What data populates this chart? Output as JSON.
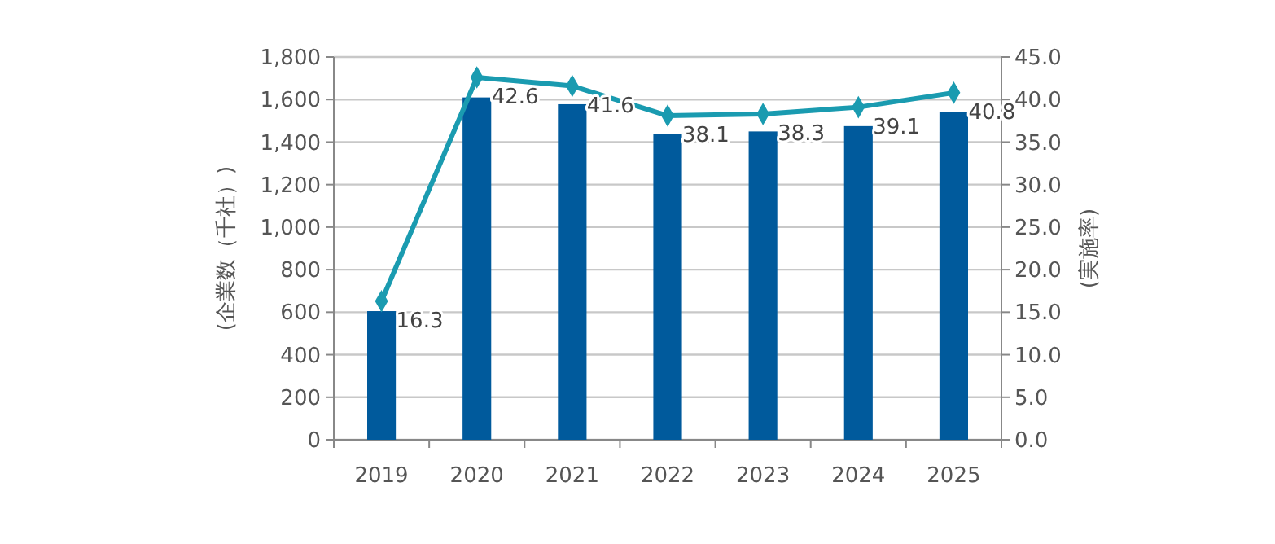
{
  "chart_data": {
    "type": "bar",
    "categories": [
      "2019",
      "2020",
      "2021",
      "2022",
      "2023",
      "2024",
      "2025"
    ],
    "ylabel": "(企業数（千社）)",
    "y2label": "(実施率)",
    "ylim": [
      0,
      1800
    ],
    "yticks": [
      {
        "value": 0,
        "label": "0"
      },
      {
        "value": 200,
        "label": "200"
      },
      {
        "value": 400,
        "label": "400"
      },
      {
        "value": 600,
        "label": "600"
      },
      {
        "value": 800,
        "label": "800"
      },
      {
        "value": 1000,
        "label": "1,000"
      },
      {
        "value": 1200,
        "label": "1,200"
      },
      {
        "value": 1400,
        "label": "1,400"
      },
      {
        "value": 1600,
        "label": "1,600"
      },
      {
        "value": 1800,
        "label": "1,800"
      }
    ],
    "y2lim": [
      0,
      45
    ],
    "y2ticks": [
      {
        "value": 0,
        "label": "0.0"
      },
      {
        "value": 5,
        "label": "5.0"
      },
      {
        "value": 10,
        "label": "10.0"
      },
      {
        "value": 15,
        "label": "15.0"
      },
      {
        "value": 20,
        "label": "20.0"
      },
      {
        "value": 25,
        "label": "25.0"
      },
      {
        "value": 30,
        "label": "30.0"
      },
      {
        "value": 35,
        "label": "35.0"
      },
      {
        "value": 40,
        "label": "40.0"
      },
      {
        "value": 45,
        "label": "45.0"
      }
    ],
    "grid": "y",
    "series": [
      {
        "color": "#005a9c",
        "values": [
          605,
          1610,
          1578,
          1440,
          1450,
          1475,
          1542
        ]
      },
      {
        "type": "line",
        "axis": "y2",
        "color": "#1a9bb0",
        "marker": "diamond",
        "line_style": "solid",
        "values": [
          16.3,
          42.6,
          41.6,
          38.1,
          38.3,
          39.1,
          40.8
        ],
        "value_labels": [
          "16.3",
          "42.6",
          "41.6",
          "38.1",
          "38.3",
          "39.1",
          "40.8"
        ]
      }
    ]
  }
}
